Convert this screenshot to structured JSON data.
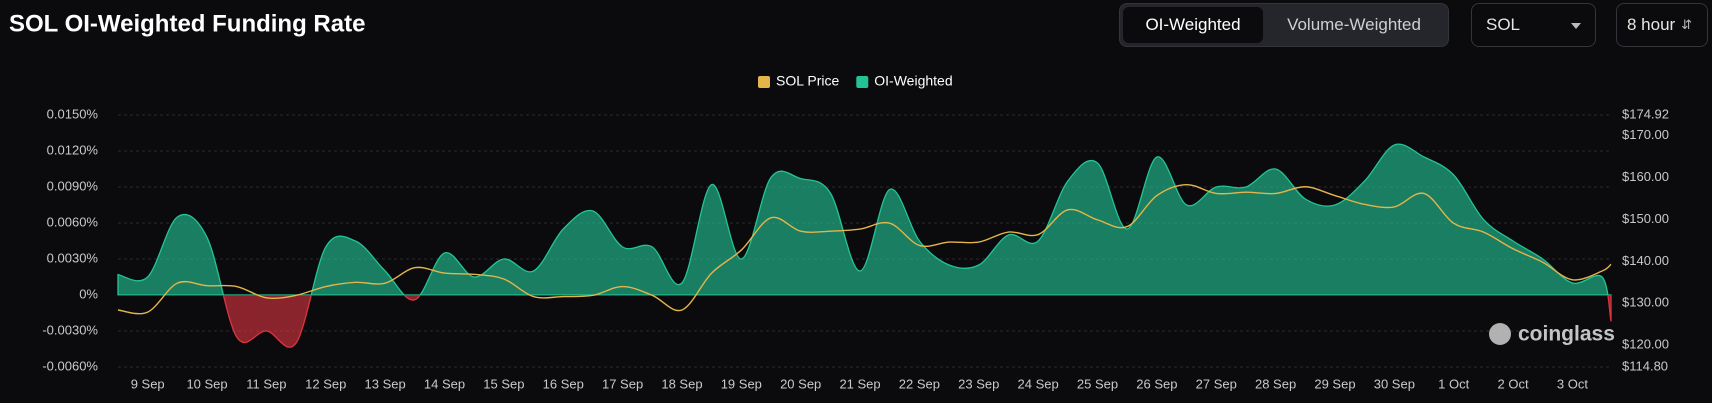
{
  "controls": {
    "modes": [
      "OI-Weighted",
      "Volume-Weighted"
    ],
    "symbol": "SOL",
    "interval": "8 hour"
  },
  "watermark": "coinglass",
  "chart_data": {
    "type": "area",
    "title": "SOL OI-Weighted Funding Rate",
    "grid": true,
    "x": [
      -0.5,
      0,
      0.5,
      1,
      1.5,
      2,
      2.5,
      3,
      3.5,
      4,
      4.5,
      5,
      5.5,
      6,
      6.5,
      7,
      7.5,
      8,
      8.5,
      9,
      9.5,
      10,
      10.5,
      11,
      11.5,
      12,
      12.5,
      13,
      13.5,
      14,
      14.5,
      15,
      15.5,
      16,
      16.5,
      17,
      17.5,
      18,
      18.5,
      19,
      19.5,
      20,
      20.5,
      21,
      21.5,
      22,
      22.5,
      23,
      23.5,
      24,
      24.5,
      24.65
    ],
    "xlim": [
      -0.5,
      24.65
    ],
    "xticks": [
      {
        "value": 0,
        "label": "9 Sep"
      },
      {
        "value": 1,
        "label": "10 Sep"
      },
      {
        "value": 2,
        "label": "11 Sep"
      },
      {
        "value": 3,
        "label": "12 Sep"
      },
      {
        "value": 4,
        "label": "13 Sep"
      },
      {
        "value": 5,
        "label": "14 Sep"
      },
      {
        "value": 6,
        "label": "15 Sep"
      },
      {
        "value": 7,
        "label": "16 Sep"
      },
      {
        "value": 8,
        "label": "17 Sep"
      },
      {
        "value": 9,
        "label": "18 Sep"
      },
      {
        "value": 10,
        "label": "19 Sep"
      },
      {
        "value": 11,
        "label": "20 Sep"
      },
      {
        "value": 12,
        "label": "21 Sep"
      },
      {
        "value": 13,
        "label": "22 Sep"
      },
      {
        "value": 14,
        "label": "23 Sep"
      },
      {
        "value": 15,
        "label": "24 Sep"
      },
      {
        "value": 16,
        "label": "25 Sep"
      },
      {
        "value": 17,
        "label": "26 Sep"
      },
      {
        "value": 18,
        "label": "27 Sep"
      },
      {
        "value": 19,
        "label": "28 Sep"
      },
      {
        "value": 20,
        "label": "29 Sep"
      },
      {
        "value": 21,
        "label": "30 Sep"
      },
      {
        "value": 22,
        "label": "1 Oct"
      },
      {
        "value": 23,
        "label": "2 Oct"
      },
      {
        "value": 24,
        "label": "3 Oct"
      }
    ],
    "ylim": [
      -0.006,
      0.015
    ],
    "yticks": [
      {
        "value": 0.015,
        "label": "0.0150%"
      },
      {
        "value": 0.012,
        "label": "0.0120%"
      },
      {
        "value": 0.009,
        "label": "0.0090%"
      },
      {
        "value": 0.006,
        "label": "0.0060%"
      },
      {
        "value": 0.003,
        "label": "0.0030%"
      },
      {
        "value": 0,
        "label": "0%"
      },
      {
        "value": -0.003,
        "label": "-0.0030%"
      },
      {
        "value": -0.006,
        "label": "-0.0060%"
      }
    ],
    "y2lim": [
      114.8,
      174.92
    ],
    "y2ticks": [
      {
        "value": 174.92,
        "label": "$174.92"
      },
      {
        "value": 170,
        "label": "$170.00"
      },
      {
        "value": 160,
        "label": "$160.00"
      },
      {
        "value": 150,
        "label": "$150.00"
      },
      {
        "value": 140,
        "label": "$140.00"
      },
      {
        "value": 130,
        "label": "$130.00"
      },
      {
        "value": 120,
        "label": "$120.00"
      },
      {
        "value": 114.8,
        "label": "$114.80"
      }
    ],
    "series": [
      {
        "name": "SOL Price",
        "type": "line",
        "axis": "y2",
        "color": "#e3b54a",
        "values": [
          128.4,
          127.9,
          134.8,
          134.2,
          134,
          131.3,
          131.9,
          134,
          135,
          134.8,
          138.5,
          137.2,
          136.9,
          135.8,
          131.6,
          131.6,
          131.9,
          134,
          131.9,
          128.4,
          137.2,
          142.7,
          150.4,
          147.2,
          147.2,
          147.7,
          149.1,
          143.8,
          144.6,
          144.6,
          147,
          146.4,
          152.3,
          149.9,
          148.3,
          155.7,
          158.3,
          156.2,
          156.5,
          156.2,
          157.8,
          155.7,
          153.6,
          153,
          156.2,
          149.1,
          147,
          143,
          139.8,
          135.6,
          137.7,
          139.3
        ]
      },
      {
        "name": "OI-Weighted",
        "type": "area",
        "color": "#22c495",
        "negative_color": "#d9343f",
        "values": [
          0.0017,
          0.0015,
          0.0065,
          0.0048,
          -0.0035,
          -0.003,
          -0.004,
          0.004,
          0.0045,
          0.002,
          -0.0004,
          0.0035,
          0.0015,
          0.003,
          0.002,
          0.0055,
          0.007,
          0.004,
          0.004,
          0.001,
          0.0092,
          0.003,
          0.0098,
          0.0097,
          0.0085,
          0.002,
          0.0088,
          0.0045,
          0.0025,
          0.0025,
          0.005,
          0.0045,
          0.0095,
          0.011,
          0.0055,
          0.0115,
          0.0075,
          0.009,
          0.009,
          0.0105,
          0.008,
          0.0075,
          0.0095,
          0.0125,
          0.0115,
          0.01,
          0.0063,
          0.0045,
          0.003,
          0.001,
          0.0015,
          -0.0022
        ]
      }
    ]
  }
}
